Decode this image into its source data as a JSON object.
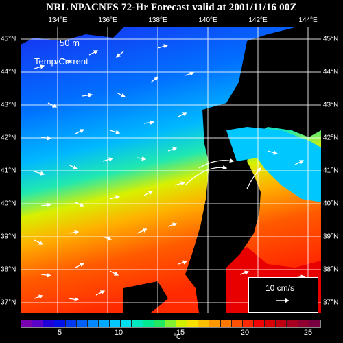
{
  "title": "NRL NPACNFS 72-Hr Forecast valid at 2001/11/16 00Z",
  "lon_labels": [
    "134°E",
    "136°E",
    "138°E",
    "140°E",
    "142°E",
    "144°E"
  ],
  "lat_labels": [
    "45°N",
    "44°N",
    "43°N",
    "42°N",
    "41°N",
    "40°N",
    "39°N",
    "38°N",
    "37°N"
  ],
  "overlay": {
    "depth": "50 m",
    "field": "Temp/Current"
  },
  "scale": {
    "label": "10 cm/s"
  },
  "colorbar": {
    "labels": [
      "5",
      "10",
      "15",
      "20",
      "25"
    ],
    "unit": "°C",
    "colors": [
      "#7a00b0",
      "#5a00c8",
      "#2000d8",
      "#0010e8",
      "#0038f0",
      "#0060f8",
      "#0088ff",
      "#00a8ff",
      "#00c8ff",
      "#00e0f0",
      "#00e8c0",
      "#00e890",
      "#20e860",
      "#80f030",
      "#d0f000",
      "#f8e000",
      "#ffc000",
      "#ff9800",
      "#ff7800",
      "#ff5000",
      "#ff2800",
      "#f00000",
      "#d80000",
      "#c00010",
      "#a80020",
      "#900030",
      "#780040"
    ]
  },
  "accent_land": "#000000"
}
